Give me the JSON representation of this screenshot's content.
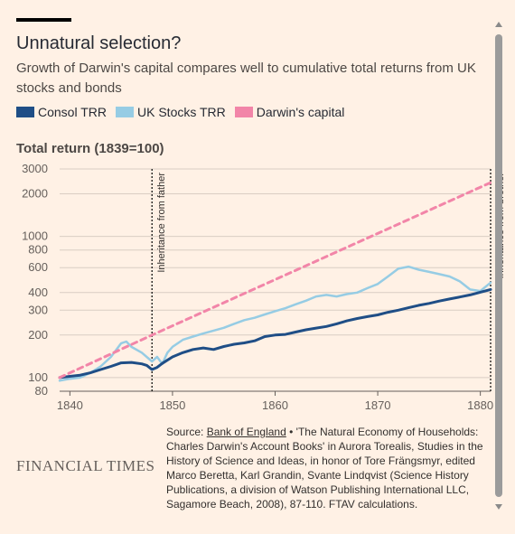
{
  "header": {
    "title": "Unnatural selection?",
    "subtitle": "Growth of Darwin's capital compares well to cumulative total returns from UK stocks and bonds"
  },
  "legend": [
    {
      "label": "Consol TRR",
      "color": "#1f4e86"
    },
    {
      "label": "UK Stocks TRR",
      "color": "#96cce4"
    },
    {
      "label": "Darwin's capital",
      "color": "#f285a8"
    }
  ],
  "footer": {
    "logo": "FINANCIAL TIMES",
    "source_prefix": "Source: ",
    "source_link": "Bank of England",
    "source_rest": " • 'The Natural Economy of Households: Charles Darwin's Account Books' in Aurora Torealis, Studies in the History of Science and Ideas, in honor of Tore Frängsmyr, edited Marco Beretta, Karl Grandin, Svante Lindqvist (Science History Publications, a division of Watson Publishing International LLC, Sagamore Beach, 2008), 87-110. FTAV calculations."
  },
  "chart_data": {
    "type": "line",
    "title": "Unnatural selection?",
    "ylabel": "Total return (1839=100)",
    "yscale": "log",
    "ylim": [
      80,
      3000
    ],
    "xlim": [
      1839,
      1881
    ],
    "x_ticks": [
      "1840",
      "1850",
      "1860",
      "1870",
      "1880"
    ],
    "y_ticks": [
      80,
      100,
      200,
      300,
      400,
      600,
      800,
      1000,
      2000,
      3000
    ],
    "grid": true,
    "legend_position": "top-left",
    "annotations": [
      {
        "x": 1848,
        "label": "Inheritance from father"
      },
      {
        "x": 1881,
        "label": "Inheritance from brother"
      }
    ],
    "series": [
      {
        "name": "Consol TRR",
        "color": "#1f4e86",
        "x": [
          1839,
          1840,
          1841,
          1842,
          1843,
          1844,
          1845,
          1846,
          1847,
          1847.5,
          1848,
          1848.5,
          1849,
          1850,
          1851,
          1852,
          1853,
          1854,
          1855,
          1856,
          1857,
          1858,
          1859,
          1860,
          1861,
          1862,
          1863,
          1864,
          1865,
          1866,
          1867,
          1868,
          1869,
          1870,
          1871,
          1872,
          1873,
          1874,
          1875,
          1876,
          1877,
          1878,
          1879,
          1880,
          1881
        ],
        "values": [
          100,
          102,
          104,
          108,
          114,
          120,
          127,
          128,
          125,
          122,
          114,
          118,
          126,
          140,
          150,
          158,
          162,
          158,
          166,
          172,
          176,
          182,
          195,
          200,
          202,
          210,
          218,
          224,
          230,
          240,
          252,
          262,
          270,
          278,
          290,
          300,
          312,
          325,
          335,
          348,
          360,
          372,
          385,
          402,
          420
        ]
      },
      {
        "name": "UK Stocks TRR",
        "color": "#96cce4",
        "x": [
          1839,
          1840,
          1841,
          1842,
          1843,
          1844,
          1845,
          1845.5,
          1846,
          1847,
          1848,
          1848.5,
          1849,
          1849.5,
          1850,
          1851,
          1852,
          1853,
          1854,
          1855,
          1856,
          1857,
          1858,
          1859,
          1860,
          1861,
          1862,
          1863,
          1864,
          1865,
          1866,
          1867,
          1868,
          1869,
          1870,
          1871,
          1872,
          1873,
          1874,
          1875,
          1876,
          1877,
          1878,
          1879,
          1880,
          1881
        ],
        "values": [
          95,
          98,
          100,
          108,
          120,
          140,
          175,
          180,
          165,
          150,
          130,
          140,
          125,
          150,
          165,
          185,
          195,
          205,
          215,
          225,
          240,
          255,
          265,
          280,
          295,
          310,
          330,
          350,
          375,
          385,
          375,
          390,
          400,
          430,
          460,
          520,
          590,
          610,
          580,
          560,
          540,
          520,
          480,
          420,
          410,
          470
        ]
      },
      {
        "name": "Darwin's capital",
        "color": "#f285a8",
        "x": [
          1839,
          1848,
          1881
        ],
        "values": [
          100,
          200,
          2400
        ]
      }
    ]
  }
}
